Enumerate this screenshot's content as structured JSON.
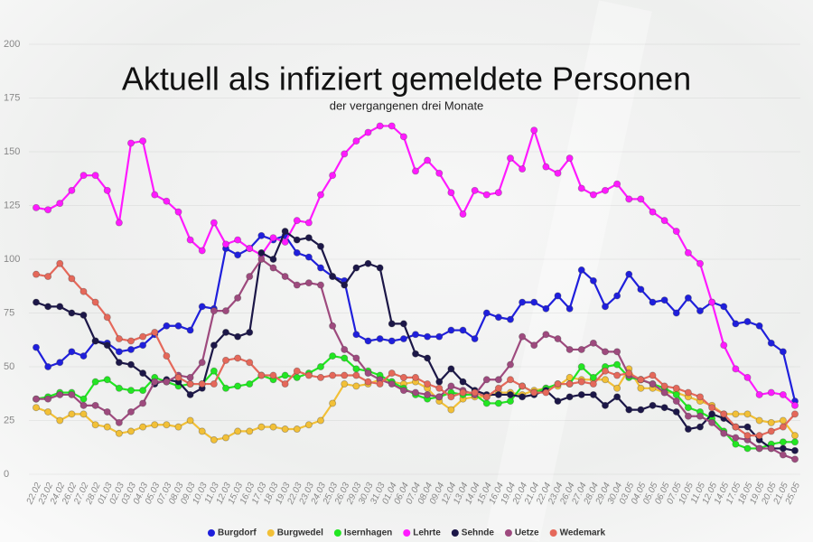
{
  "chart_data": {
    "type": "line",
    "title": "Aktuell als infiziert gemeldete Personen",
    "subtitle": "der vergangenen drei Monate",
    "categories": [
      "22.02",
      "23.02",
      "24.02",
      "26.02",
      "27.02",
      "28.02",
      "01.03",
      "02.03",
      "03.03",
      "04.03",
      "05.03",
      "07.03",
      "08.03",
      "09.03",
      "10.03",
      "11.03",
      "12.03",
      "15.03",
      "16.03",
      "17.03",
      "18.03",
      "19.03",
      "22.03",
      "23.03",
      "24.03",
      "25.03",
      "26.03",
      "29.03",
      "30.03",
      "31.03",
      "01.04",
      "06.04",
      "07.04",
      "08.04",
      "09.04",
      "12.04",
      "13.04",
      "14.04",
      "15.04",
      "16.04",
      "19.04",
      "20.04",
      "21.04",
      "22.04",
      "23.04",
      "26.04",
      "27.04",
      "28.04",
      "29.04",
      "30.04",
      "03.05",
      "04.05",
      "05.05",
      "06.05",
      "07.05",
      "10.05",
      "11.05",
      "12.05",
      "14.05",
      "17.05",
      "18.05",
      "19.05",
      "20.05",
      "21.05",
      "25.05"
    ],
    "ylim": [
      0,
      200
    ],
    "yticks": [
      0,
      25,
      50,
      75,
      100,
      125,
      150,
      175,
      200
    ],
    "legend": "bottom",
    "series": [
      {
        "name": "Burgdorf",
        "color": "#1f1fdc",
        "values": [
          59,
          50,
          52,
          57,
          55,
          62,
          61,
          57,
          58,
          60,
          65,
          69,
          69,
          67,
          78,
          77,
          105,
          102,
          105,
          111,
          109,
          111,
          103,
          101,
          96,
          92,
          90,
          65,
          62,
          63,
          62,
          63,
          65,
          64,
          64,
          67,
          67,
          63,
          75,
          73,
          72,
          80,
          80,
          77,
          83,
          77,
          95,
          90,
          78,
          83,
          93,
          86,
          80,
          81,
          75,
          82,
          76,
          80,
          78,
          70,
          71,
          69,
          61,
          57,
          34
        ]
      },
      {
        "name": "Burgwedel",
        "color": "#f2c037",
        "values": [
          31,
          29,
          25,
          28,
          28,
          23,
          22,
          19,
          20,
          22,
          23,
          23,
          22,
          25,
          20,
          16,
          17,
          20,
          20,
          22,
          22,
          21,
          21,
          23,
          25,
          33,
          42,
          41,
          42,
          44,
          43,
          42,
          43,
          40,
          34,
          30,
          35,
          36,
          36,
          38,
          38,
          37,
          39,
          40,
          41,
          45,
          44,
          44,
          44,
          40,
          49,
          40,
          40,
          38,
          38,
          36,
          34,
          32,
          28,
          28,
          28,
          25,
          24,
          25,
          18
        ]
      },
      {
        "name": "Isernhagen",
        "color": "#22e622",
        "values": [
          35,
          36,
          38,
          38,
          35,
          43,
          44,
          40,
          39,
          39,
          45,
          43,
          41,
          42,
          42,
          48,
          40,
          41,
          42,
          46,
          44,
          46,
          45,
          47,
          50,
          55,
          54,
          49,
          48,
          46,
          43,
          40,
          37,
          35,
          36,
          38,
          37,
          37,
          33,
          33,
          34,
          41,
          38,
          40,
          42,
          42,
          50,
          45,
          50,
          51,
          45,
          44,
          42,
          40,
          37,
          31,
          29,
          26,
          20,
          14,
          12,
          12,
          14,
          15,
          15
        ]
      },
      {
        "name": "Lehrte",
        "color": "#ff1aff",
        "values": [
          124,
          123,
          126,
          132,
          139,
          139,
          132,
          117,
          154,
          155,
          130,
          127,
          122,
          109,
          104,
          117,
          107,
          109,
          105,
          102,
          110,
          108,
          118,
          117,
          130,
          139,
          149,
          155,
          159,
          162,
          162,
          157,
          141,
          146,
          140,
          131,
          121,
          132,
          130,
          131,
          147,
          142,
          160,
          143,
          140,
          147,
          133,
          130,
          132,
          135,
          128,
          128,
          122,
          118,
          113,
          103,
          98,
          80,
          60,
          49,
          45,
          37,
          38,
          37,
          32
        ]
      },
      {
        "name": "Sehnde",
        "color": "#1c1748",
        "values": [
          80,
          78,
          78,
          75,
          74,
          62,
          60,
          52,
          51,
          47,
          42,
          44,
          43,
          37,
          40,
          60,
          66,
          64,
          66,
          103,
          100,
          113,
          109,
          110,
          106,
          92,
          88,
          96,
          98,
          96,
          70,
          70,
          56,
          54,
          43,
          49,
          43,
          39,
          37,
          37,
          37,
          36,
          37,
          39,
          34,
          36,
          37,
          37,
          32,
          36,
          30,
          30,
          32,
          31,
          29,
          21,
          22,
          28,
          26,
          22,
          22,
          16,
          12,
          12,
          11
        ]
      },
      {
        "name": "Uetze",
        "color": "#9e4a7e",
        "values": [
          35,
          35,
          37,
          37,
          32,
          32,
          29,
          24,
          29,
          33,
          43,
          43,
          46,
          45,
          52,
          76,
          76,
          82,
          92,
          100,
          96,
          92,
          88,
          89,
          88,
          69,
          58,
          54,
          47,
          44,
          42,
          39,
          38,
          37,
          36,
          41,
          39,
          37,
          44,
          44,
          51,
          64,
          60,
          65,
          63,
          58,
          58,
          61,
          57,
          57,
          46,
          44,
          42,
          38,
          34,
          27,
          27,
          24,
          19,
          17,
          16,
          12,
          12,
          9,
          7
        ]
      },
      {
        "name": "Wedemark",
        "color": "#e5685a",
        "values": [
          93,
          92,
          98,
          91,
          85,
          80,
          73,
          63,
          62,
          64,
          66,
          55,
          45,
          42,
          42,
          42,
          53,
          54,
          52,
          46,
          46,
          42,
          48,
          46,
          45,
          46,
          46,
          46,
          43,
          42,
          47,
          45,
          45,
          42,
          40,
          36,
          38,
          38,
          36,
          40,
          44,
          41,
          38,
          38,
          42,
          42,
          43,
          42,
          48,
          46,
          47,
          44,
          46,
          41,
          40,
          38,
          36,
          31,
          28,
          22,
          18,
          18,
          20,
          22,
          28
        ]
      }
    ]
  }
}
